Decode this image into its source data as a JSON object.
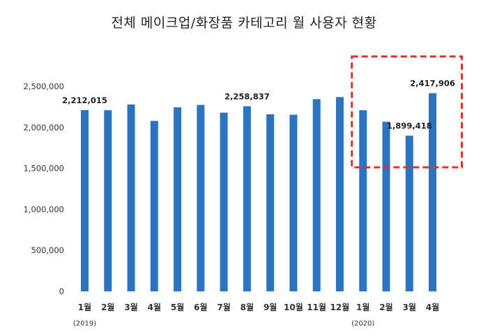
{
  "chart_data": {
    "type": "bar",
    "title": "전체 메이크업/화장품 카테고리 월 사용자 현황",
    "xlabel": "",
    "ylabel": "",
    "ylim": [
      0,
      2500000
    ],
    "yticks": [
      "0",
      "500,000",
      "1,000,000",
      "1,500,000",
      "2,000,000",
      "2,500,000"
    ],
    "ytick_values": [
      0,
      500000,
      1000000,
      1500000,
      2000000,
      2500000
    ],
    "categories": [
      "1월",
      "2월",
      "3월",
      "4월",
      "5월",
      "6월",
      "7월",
      "8월",
      "9월",
      "10월",
      "11월",
      "12월",
      "1월",
      "2월",
      "3월",
      "4월"
    ],
    "year_labels": [
      {
        "index": 0,
        "text": "(2019)"
      },
      {
        "index": 12,
        "text": "(2020)"
      }
    ],
    "values": [
      2212015,
      2210000,
      2280000,
      2080000,
      2245000,
      2275000,
      2180000,
      2258837,
      2160000,
      2155000,
      2345000,
      2370000,
      2210000,
      2070000,
      1899418,
      2417906
    ],
    "data_labels": [
      {
        "index": 0,
        "text": "2,212,015"
      },
      {
        "index": 7,
        "text": "2,258,837"
      },
      {
        "index": 14,
        "text": "1,899,418"
      },
      {
        "index": 15,
        "text": "2,417,906"
      }
    ],
    "bar_color": "#2b74c4",
    "highlight": {
      "from_index": 12,
      "to_index": 15,
      "color": "#e0302a",
      "style": "dashed"
    },
    "grid": false,
    "legend": "none"
  }
}
